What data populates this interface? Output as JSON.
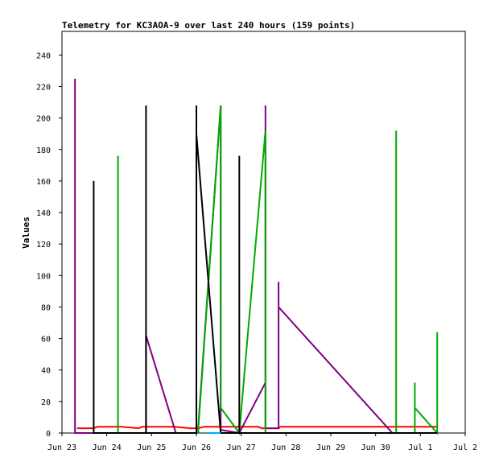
{
  "chart_data": {
    "type": "line",
    "title": "Telemetry for KC3AOA-9 over last 240 hours (159 points)",
    "ylabel": "Values",
    "xlabel": "",
    "xlim": [
      "2023-06-23T00:00",
      "2023-07-02T00:00"
    ],
    "ylim": [
      0,
      255
    ],
    "x_ticks": [
      "Jun 23",
      "Jun 24",
      "Jun 25",
      "Jun 26",
      "Jun 27",
      "Jun 28",
      "Jun 29",
      "Jun 30",
      "Jul 1",
      "Jul 2"
    ],
    "y_ticks": [
      0,
      20,
      40,
      60,
      80,
      100,
      120,
      140,
      160,
      180,
      200,
      220,
      240
    ],
    "grid": false,
    "legend": "none",
    "series": [
      {
        "color": "#ff0000",
        "points": [
          [
            "2023-06-23T08:00",
            3
          ],
          [
            "2023-06-23T17:00",
            3
          ],
          [
            "2023-06-23T19:00",
            4
          ],
          [
            "2023-06-24T08:00",
            4
          ],
          [
            "2023-06-24T17:00",
            3
          ],
          [
            "2023-06-24T19:00",
            4
          ],
          [
            "2023-06-25T12:00",
            4
          ],
          [
            "2023-06-25T21:00",
            3
          ],
          [
            "2023-06-26T01:00",
            3
          ],
          [
            "2023-06-26T04:00",
            4
          ],
          [
            "2023-06-26T20:00",
            4
          ],
          [
            "2023-06-27T09:00",
            4
          ],
          [
            "2023-06-27T11:00",
            3
          ],
          [
            "2023-06-27T20:00",
            3
          ],
          [
            "2023-06-27T21:00",
            4
          ],
          [
            "2023-06-30T09:00",
            4
          ],
          [
            "2023-07-01T09:00",
            4
          ]
        ]
      },
      {
        "color": "#800080",
        "points": [
          [
            "2023-06-23T07:00",
            225
          ],
          [
            "2023-06-23T07:00",
            0
          ],
          [
            "2023-06-24T21:00",
            0
          ],
          [
            "2023-06-24T21:00",
            62
          ],
          [
            "2023-06-25T13:00",
            0
          ],
          [
            "2023-06-26T01:00",
            0
          ],
          [
            "2023-06-26T01:00",
            4
          ],
          [
            "2023-06-26T13:00",
            208
          ],
          [
            "2023-06-26T13:00",
            2
          ],
          [
            "2023-06-26T23:00",
            0
          ],
          [
            "2023-06-27T13:00",
            32
          ],
          [
            "2023-06-27T13:00",
            208
          ],
          [
            "2023-06-27T13:00",
            3
          ],
          [
            "2023-06-27T20:00",
            3
          ],
          [
            "2023-06-27T20:00",
            96
          ],
          [
            "2023-06-27T20:00",
            80
          ],
          [
            "2023-06-30T09:00",
            0
          ],
          [
            "2023-07-01T09:00",
            0
          ]
        ]
      },
      {
        "color": "#00aa00",
        "points": [
          [
            "2023-06-24T06:00",
            0
          ],
          [
            "2023-06-24T06:00",
            176
          ],
          [
            "2023-06-24T06:00",
            0
          ],
          [
            "2023-06-26T01:00",
            0
          ],
          [
            "2023-06-26T01:00",
            2
          ],
          [
            "2023-06-26T13:00",
            208
          ],
          [
            "2023-06-26T13:00",
            16
          ],
          [
            "2023-06-26T23:00",
            0
          ],
          [
            "2023-06-27T13:00",
            192
          ],
          [
            "2023-06-27T13:00",
            0
          ],
          [
            "2023-06-30T11:00",
            0
          ],
          [
            "2023-06-30T11:00",
            192
          ],
          [
            "2023-06-30T11:00",
            0
          ],
          [
            "2023-06-30T21:00",
            0
          ],
          [
            "2023-06-30T21:00",
            32
          ],
          [
            "2023-06-30T21:00",
            16
          ],
          [
            "2023-07-01T09:00",
            0
          ],
          [
            "2023-07-01T09:00",
            64
          ],
          [
            "2023-07-01T09:00",
            25
          ],
          [
            "2023-07-01T09:00",
            48
          ]
        ]
      },
      {
        "color": "#000000",
        "points": [
          [
            "2023-06-23T17:00",
            0
          ],
          [
            "2023-06-23T17:00",
            160
          ],
          [
            "2023-06-23T17:00",
            0
          ],
          [
            "2023-06-23T17:00",
            144
          ],
          [
            "2023-06-23T17:00",
            0
          ],
          [
            "2023-06-24T21:00",
            0
          ],
          [
            "2023-06-24T21:00",
            208
          ],
          [
            "2023-06-24T21:00",
            0
          ],
          [
            "2023-06-26T00:00",
            0
          ],
          [
            "2023-06-26T00:00",
            208
          ],
          [
            "2023-06-26T00:00",
            190
          ],
          [
            "2023-06-26T13:00",
            0
          ],
          [
            "2023-06-26T23:00",
            0
          ],
          [
            "2023-06-26T23:00",
            176
          ],
          [
            "2023-06-26T23:00",
            0
          ],
          [
            "2023-07-01T09:00",
            0
          ]
        ]
      },
      {
        "color": "#00aaff",
        "points": [
          [
            "2023-06-26T06:00",
            0
          ],
          [
            "2023-06-26T13:00",
            0
          ]
        ]
      }
    ]
  }
}
